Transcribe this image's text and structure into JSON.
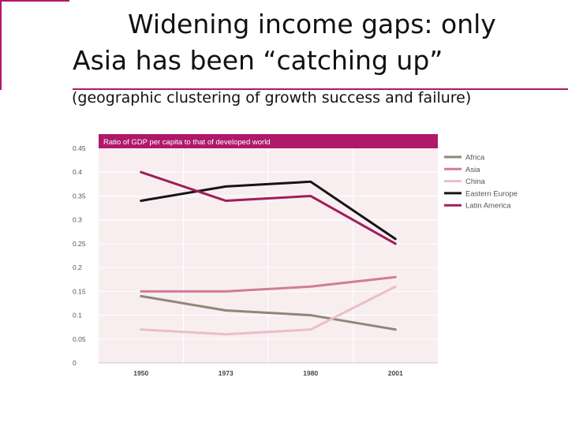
{
  "slide": {
    "title_line1": "Widening income gaps: only",
    "title_line2": "Asia has been “catching up”",
    "subtitle": "(geographic clustering of growth success and failure)"
  },
  "colors": {
    "accent": "#b0186a",
    "plot_background": "#f8eef0"
  },
  "chart_data": {
    "type": "line",
    "title": "Ratio of GDP per capita to that of developed world",
    "xlabel": "",
    "ylabel": "",
    "categories": [
      "1950",
      "1973",
      "1980",
      "2001"
    ],
    "y_ticks": [
      "0",
      "0.05",
      "0.1",
      "0.15",
      "0.2",
      "0.25",
      "0.3",
      "0.35",
      "0.4",
      "0.45"
    ],
    "ylim": [
      0,
      0.45
    ],
    "grid": true,
    "legend_position": "right",
    "series": [
      {
        "name": "Africa",
        "color": "#8f8777",
        "values": [
          0.14,
          0.11,
          0.1,
          0.07
        ]
      },
      {
        "name": "Asia",
        "color": "#d27c96",
        "values": [
          0.15,
          0.15,
          0.16,
          0.18
        ]
      },
      {
        "name": "China",
        "color": "#ecbccb",
        "values": [
          0.07,
          0.06,
          0.07,
          0.16
        ]
      },
      {
        "name": "Eastern Europe",
        "color": "#141414",
        "values": [
          0.34,
          0.37,
          0.38,
          0.26
        ]
      },
      {
        "name": "Latin America",
        "color": "#a01d5c",
        "values": [
          0.4,
          0.34,
          0.35,
          0.25
        ]
      }
    ]
  }
}
